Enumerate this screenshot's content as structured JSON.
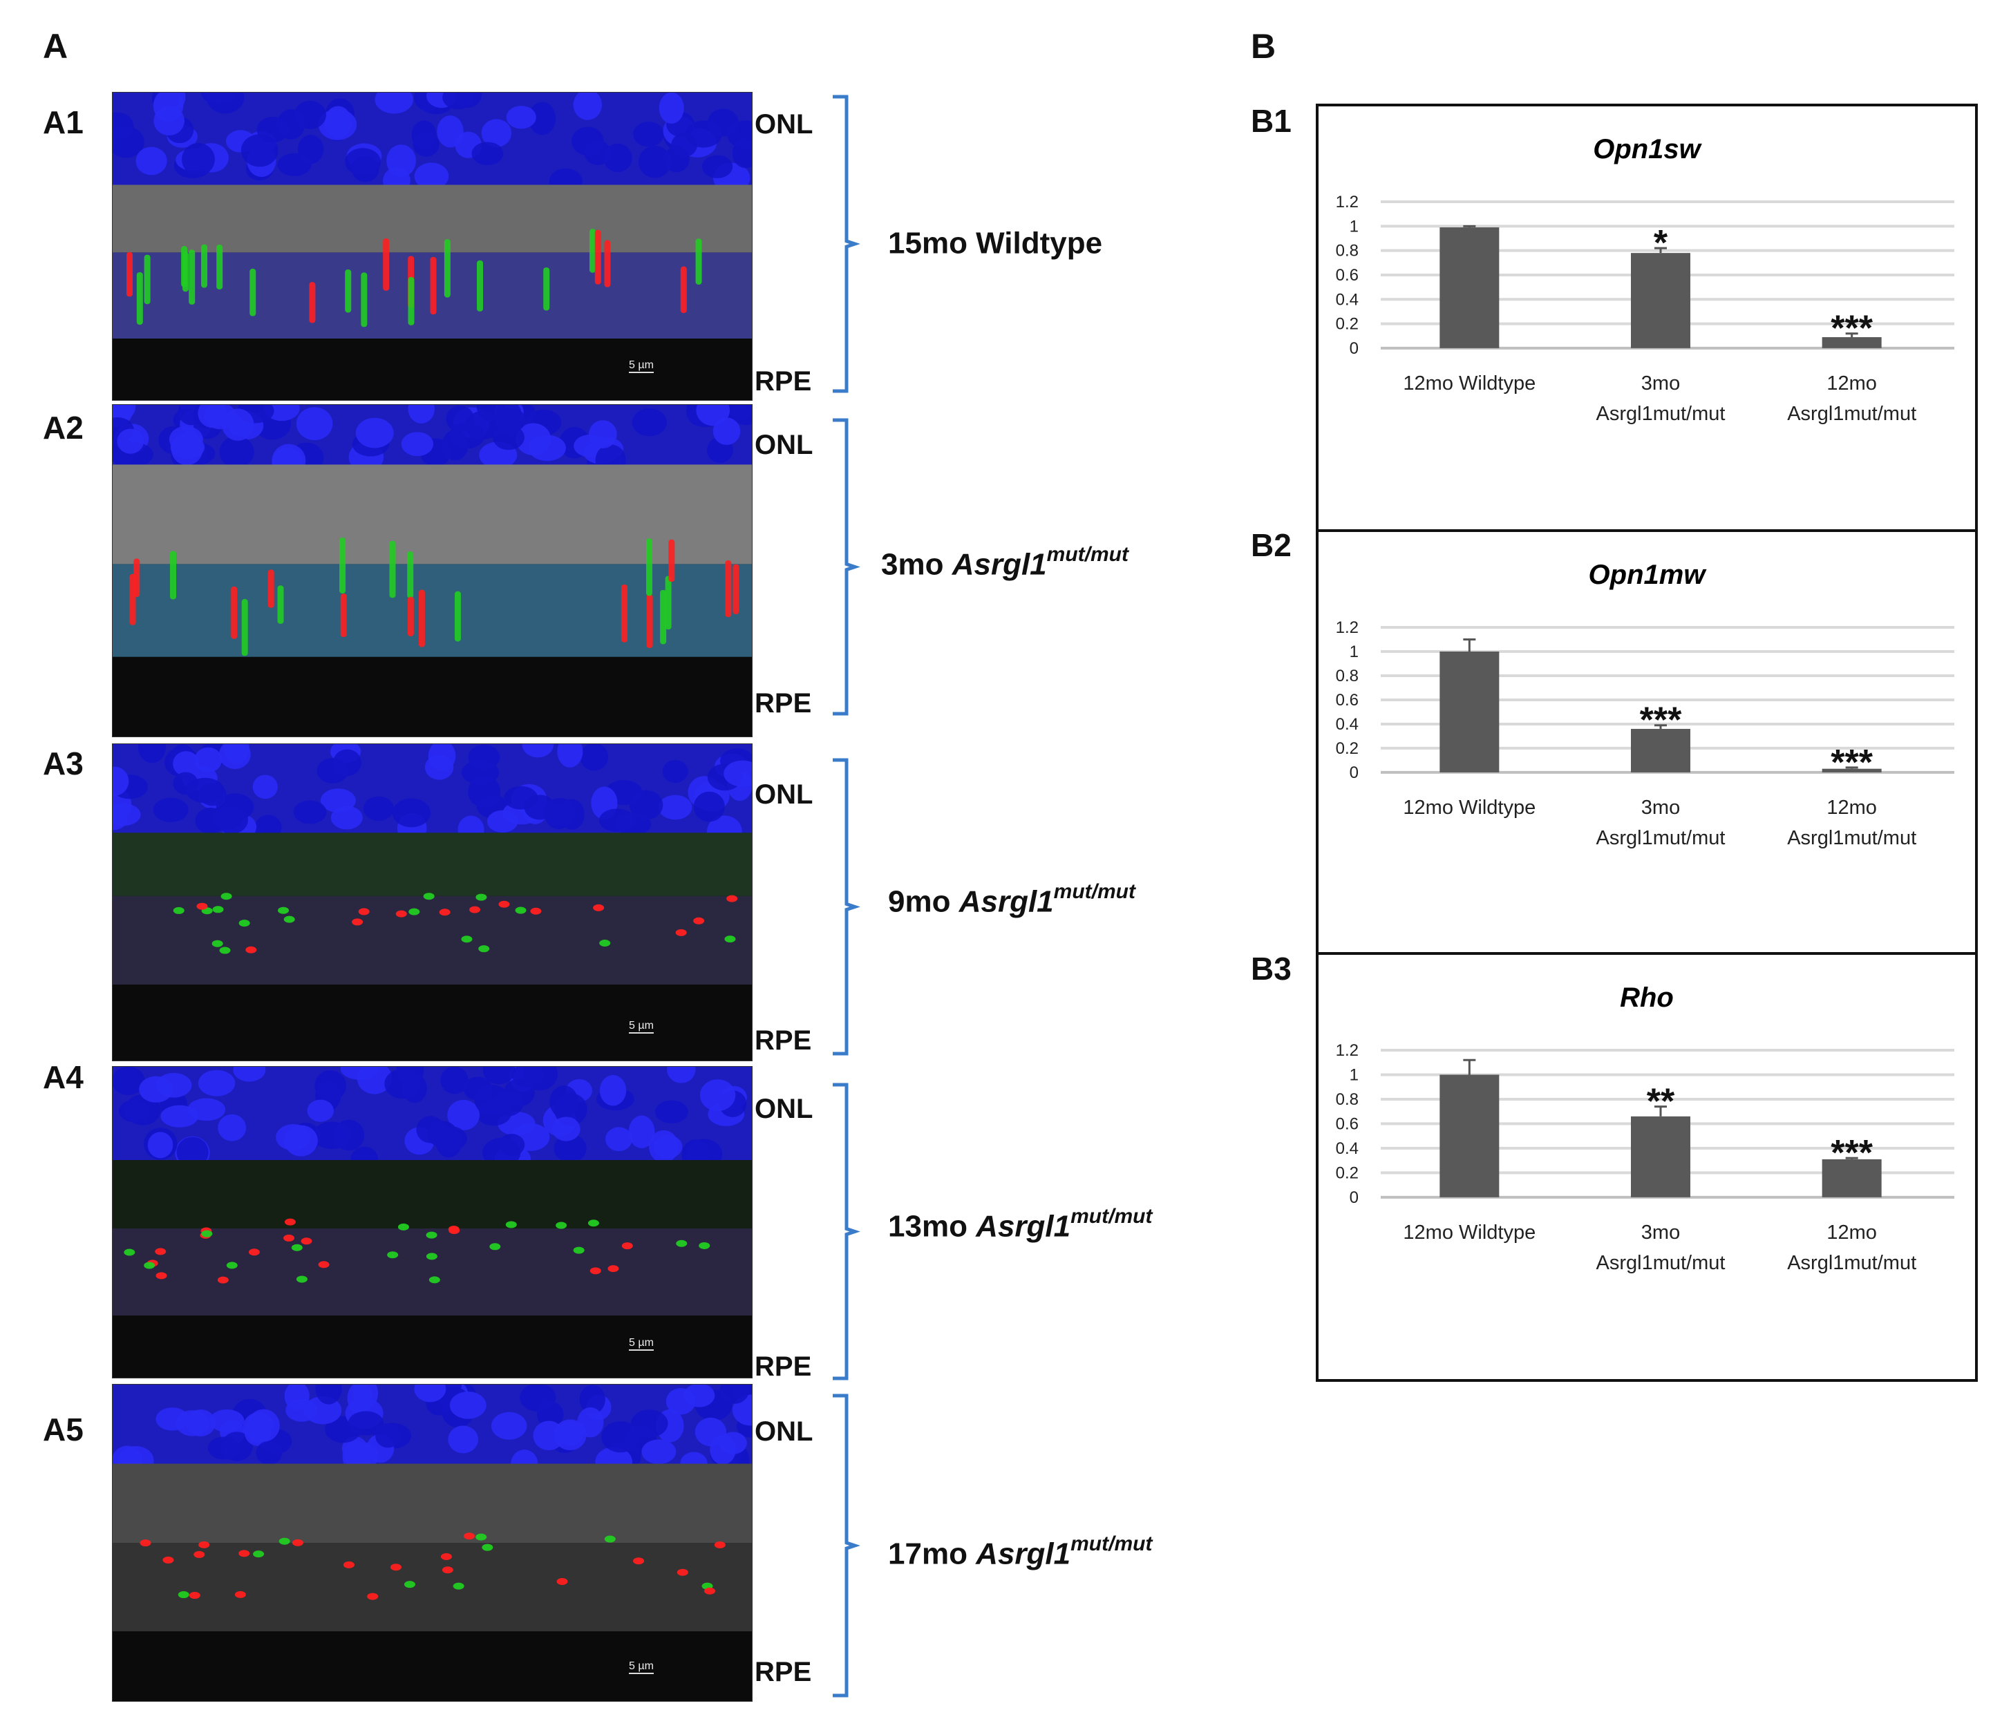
{
  "panel_a": {
    "letter": "A",
    "rows": [
      {
        "id": "A1",
        "top_label": "ONL",
        "bottom_label": "RPE",
        "scale_bar": "5 µm",
        "group_prefix": "15mo Wildtype",
        "group_gene": "",
        "group_sup": ""
      },
      {
        "id": "A2",
        "top_label": "ONL",
        "bottom_label": "RPE",
        "scale_bar": "",
        "group_prefix": "3mo ",
        "group_gene": "Asrgl1",
        "group_sup": "mut/mut"
      },
      {
        "id": "A3",
        "top_label": "ONL",
        "bottom_label": "RPE",
        "scale_bar": "5 µm",
        "group_prefix": "9mo ",
        "group_gene": "Asrgl1",
        "group_sup": "mut/mut"
      },
      {
        "id": "A4",
        "top_label": "ONL",
        "bottom_label": "RPE",
        "scale_bar": "5 µm",
        "group_prefix": "13mo ",
        "group_gene": "Asrgl1",
        "group_sup": "mut/mut"
      },
      {
        "id": "A5",
        "top_label": "ONL",
        "bottom_label": "RPE",
        "scale_bar": "5 µm",
        "group_prefix": "17mo ",
        "group_gene": "Asrgl1",
        "group_sup": "mut/mut"
      }
    ]
  },
  "panel_b": {
    "letter": "B",
    "sub_letters": [
      "B1",
      "B2",
      "B3"
    ]
  },
  "colors": {
    "bar": "#595959",
    "gridline": "#d9d9d9",
    "bracket": "#3a7cc9",
    "nuclei": "#1a1aee",
    "cone_red": "#ff2020",
    "cone_green": "#22cc22"
  },
  "chart_data": [
    {
      "type": "bar",
      "title": "Opn1sw",
      "categories": [
        "12mo Wildtype",
        "3mo\nAsrgl1mut/mut",
        "12mo\nAsrgl1mut/mut"
      ],
      "category_lines": [
        [
          "12mo Wildtype"
        ],
        [
          "3mo",
          "Asrgl1mut/mut"
        ],
        [
          "12mo",
          "Asrgl1mut/mut"
        ]
      ],
      "values": [
        0.99,
        0.78,
        0.09
      ],
      "errors": [
        0.01,
        0.04,
        0.03
      ],
      "significance": [
        "",
        "*",
        "***"
      ],
      "ylim": [
        0,
        1.2
      ],
      "yticks": [
        "0",
        "0.2",
        "0.4",
        "0.6",
        "0.8",
        "1",
        "1.2"
      ],
      "grid": true
    },
    {
      "type": "bar",
      "title": "Opn1mw",
      "categories": [
        "12mo Wildtype",
        "3mo\nAsrgl1mut/mut",
        "12mo\nAsrgl1mut/mut"
      ],
      "category_lines": [
        [
          "12mo Wildtype"
        ],
        [
          "3mo",
          "Asrgl1mut/mut"
        ],
        [
          "12mo",
          "Asrgl1mut/mut"
        ]
      ],
      "values": [
        1.0,
        0.36,
        0.03
      ],
      "errors": [
        0.1,
        0.03,
        0.01
      ],
      "significance": [
        "",
        "***",
        "***"
      ],
      "ylim": [
        0,
        1.2
      ],
      "yticks": [
        "0",
        "0.2",
        "0.4",
        "0.6",
        "0.8",
        "1",
        "1.2"
      ],
      "grid": true
    },
    {
      "type": "bar",
      "title": "Rho",
      "categories": [
        "12mo Wildtype",
        "3mo\nAsrgl1mut/mut",
        "12mo\nAsrgl1mut/mut"
      ],
      "category_lines": [
        [
          "12mo Wildtype"
        ],
        [
          "3mo",
          "Asrgl1mut/mut"
        ],
        [
          "12mo",
          "Asrgl1mut/mut"
        ]
      ],
      "values": [
        1.0,
        0.66,
        0.31
      ],
      "errors": [
        0.12,
        0.08,
        0.01
      ],
      "significance": [
        "",
        "**",
        "***"
      ],
      "ylim": [
        0,
        1.2
      ],
      "yticks": [
        "0",
        "0.2",
        "0.4",
        "0.6",
        "0.8",
        "1",
        "1.2"
      ],
      "grid": true
    }
  ]
}
